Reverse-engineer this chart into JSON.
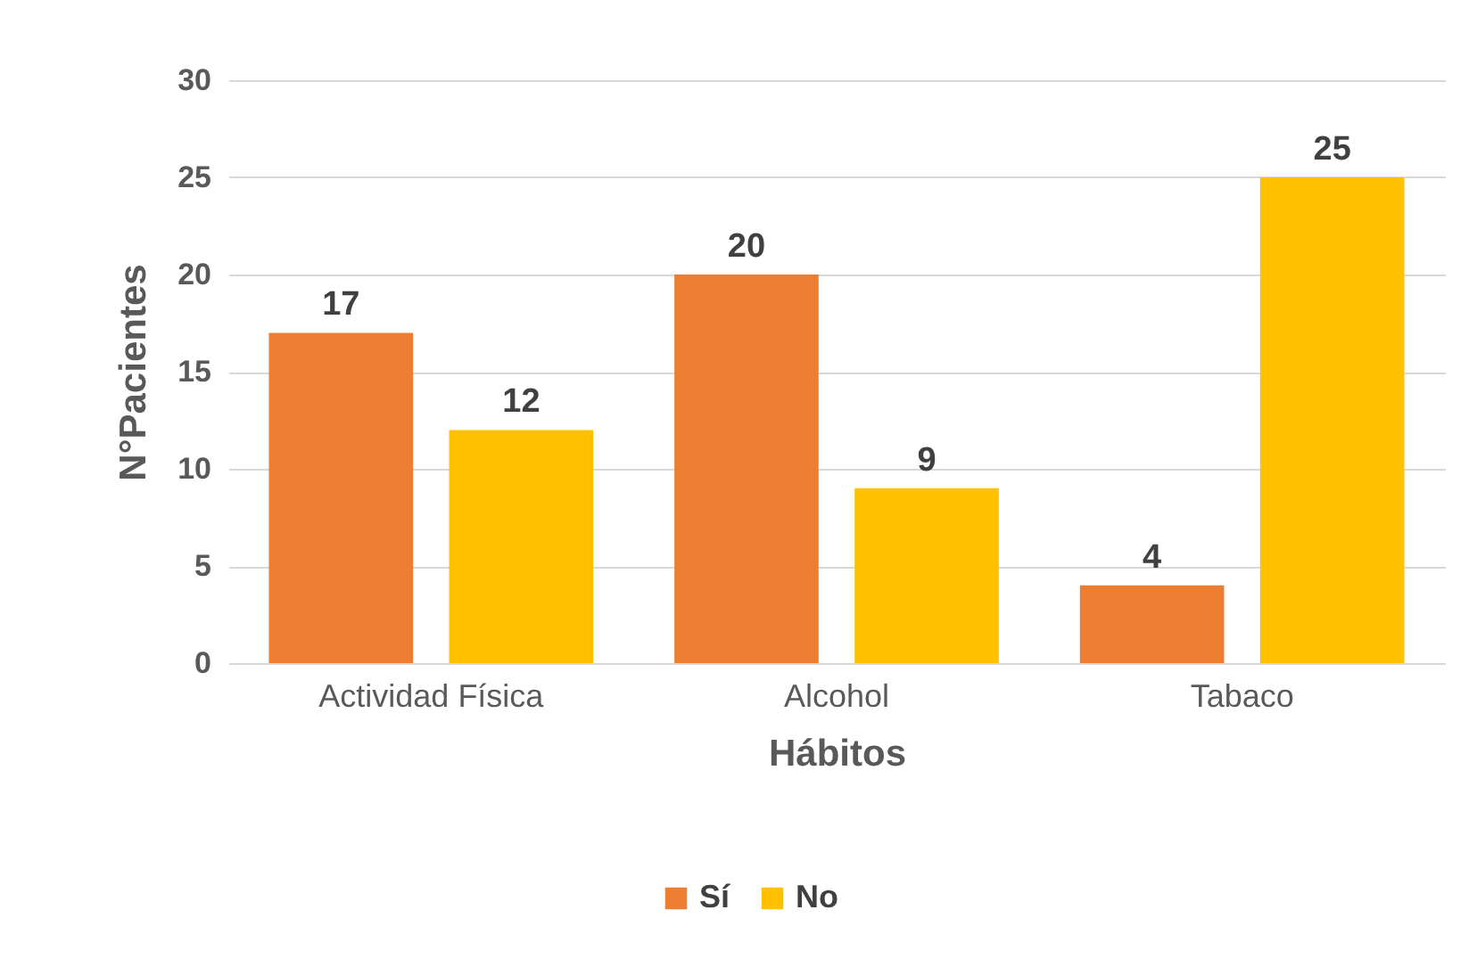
{
  "chart_data": {
    "type": "bar",
    "xlabel": "Hábitos",
    "ylabel": "N°Pacientes",
    "categories": [
      "Actividad Física",
      "Alcohol",
      "Tabaco"
    ],
    "series": [
      {
        "name": "Sí",
        "color": "#ed7d31",
        "values": [
          17,
          20,
          4
        ]
      },
      {
        "name": "No",
        "color": "#ffc000",
        "values": [
          12,
          9,
          25
        ]
      }
    ],
    "ylim": [
      0,
      30
    ],
    "yticks": [
      0,
      5,
      10,
      15,
      20,
      25,
      30
    ],
    "grid": "y",
    "legend": "bottom",
    "data_labels": true
  }
}
